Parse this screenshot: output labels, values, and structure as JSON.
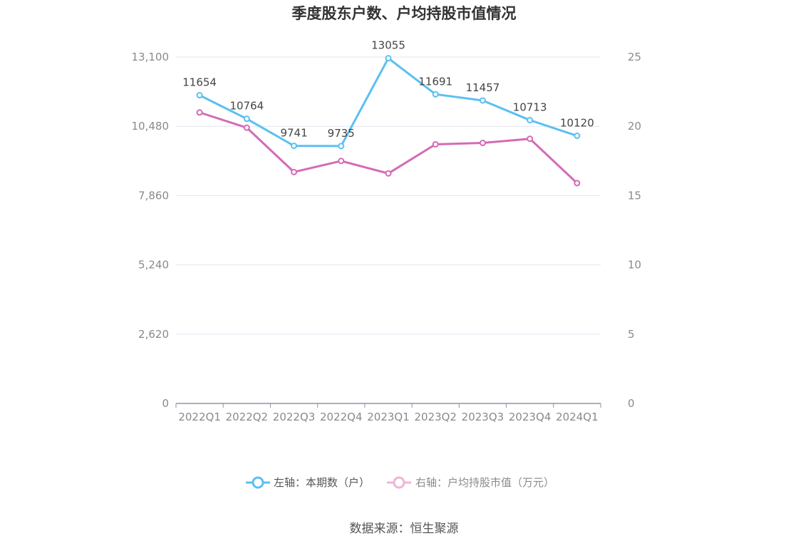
{
  "chart_data": {
    "type": "line",
    "title": "季度股东户数、户均持股市值情况",
    "categories": [
      "2022Q1",
      "2022Q2",
      "2022Q3",
      "2022Q4",
      "2023Q1",
      "2023Q2",
      "2023Q3",
      "2023Q4",
      "2024Q1"
    ],
    "left_axis": {
      "ticks": [
        "0",
        "2,620",
        "5,240",
        "7,860",
        "10,480",
        "13,100"
      ],
      "ylim": [
        0,
        13100
      ]
    },
    "right_axis": {
      "ticks": [
        "0",
        "5",
        "10",
        "15",
        "20",
        "25"
      ],
      "ylim": [
        0,
        25
      ]
    },
    "series": [
      {
        "name": "左轴：本期数（户）",
        "axis": "left",
        "color": "#5bc0f0",
        "values": [
          11654,
          10764,
          9741,
          9735,
          13055,
          11691,
          11457,
          10713,
          10120
        ],
        "labels": [
          "11654",
          "10764",
          "9741",
          "9735",
          "13055",
          "11691",
          "11457",
          "10713",
          "10120"
        ]
      },
      {
        "name": "右轴：户均持股市值（万元）",
        "axis": "right",
        "color": "#d46bb5",
        "values": [
          21.0,
          19.9,
          16.7,
          17.5,
          16.6,
          18.7,
          18.8,
          19.1,
          15.9
        ]
      }
    ],
    "grid": true,
    "legend": "bottom-center"
  },
  "source": "数据来源：恒生聚源"
}
